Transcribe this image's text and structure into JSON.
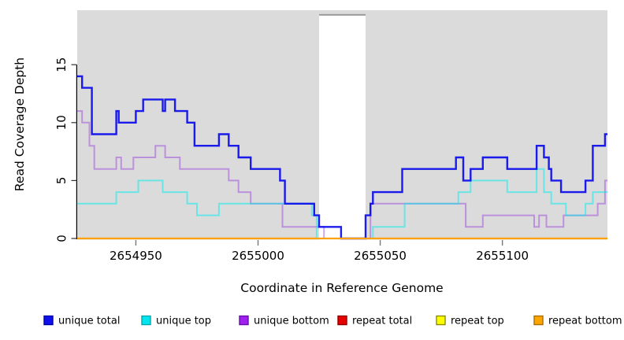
{
  "figure": {
    "panel_color": "#dbdbdb",
    "background": "#ffffff",
    "gap_band": {
      "start": 2655025,
      "end": 2655044,
      "top_value": 19.3,
      "fill": "#ffffff",
      "top_border": "#9a9a9a"
    }
  },
  "chart_data": {
    "type": "line",
    "style": "step",
    "title": "",
    "xlabel": "Coordinate in Reference Genome",
    "ylabel": "Read Coverage Depth",
    "xlim": [
      2654926,
      2655143
    ],
    "ylim": [
      0,
      19.7
    ],
    "x_ticks": [
      "2654950",
      "2655000",
      "2655050",
      "2655100"
    ],
    "x_tick_values": [
      2654950,
      2655000,
      2655050,
      2655100
    ],
    "y_ticks": [
      "0",
      "5",
      "10",
      "15"
    ],
    "y_tick_values": [
      0,
      5,
      10,
      15
    ],
    "grid": "off",
    "legend_position": "bottom",
    "x_end": 2655143,
    "series": [
      {
        "name": "unique total",
        "line_color": "rgba(10,10,235,0.92)",
        "line_width": 2.4,
        "legend_fill": "#1010ee",
        "legend_border": "#0000aa",
        "steps": [
          [
            2654926,
            14
          ],
          [
            2654928,
            13
          ],
          [
            2654932,
            9
          ],
          [
            2654942,
            11
          ],
          [
            2654943,
            10
          ],
          [
            2654950,
            11
          ],
          [
            2654953,
            12
          ],
          [
            2654961,
            11
          ],
          [
            2654962,
            12
          ],
          [
            2654966,
            11
          ],
          [
            2654971,
            10
          ],
          [
            2654974,
            8
          ],
          [
            2654984,
            9
          ],
          [
            2654988,
            8
          ],
          [
            2654992,
            7
          ],
          [
            2654997,
            6
          ],
          [
            2655009,
            5
          ],
          [
            2655011,
            3
          ],
          [
            2655023,
            2
          ],
          [
            2655025,
            1
          ],
          [
            2655034,
            0
          ],
          [
            2655044,
            2
          ],
          [
            2655046,
            3
          ],
          [
            2655047,
            4
          ],
          [
            2655059,
            6
          ],
          [
            2655081,
            7
          ],
          [
            2655084,
            5
          ],
          [
            2655087,
            6
          ],
          [
            2655092,
            7
          ],
          [
            2655102,
            6
          ],
          [
            2655114,
            8
          ],
          [
            2655117,
            7
          ],
          [
            2655119,
            6
          ],
          [
            2655120,
            5
          ],
          [
            2655124,
            4
          ],
          [
            2655134,
            5
          ],
          [
            2655137,
            8
          ],
          [
            2655142,
            9
          ]
        ]
      },
      {
        "name": "unique top",
        "line_color": "rgba(0,238,238,0.52)",
        "line_width": 2.0,
        "legend_fill": "#00e5ee",
        "legend_border": "#00a8b0",
        "steps": [
          [
            2654926,
            3
          ],
          [
            2654942,
            4
          ],
          [
            2654951,
            5
          ],
          [
            2654961,
            4
          ],
          [
            2654971,
            3
          ],
          [
            2654975,
            2
          ],
          [
            2654984,
            3
          ],
          [
            2655022,
            2
          ],
          [
            2655024,
            0
          ],
          [
            2655047,
            1
          ],
          [
            2655060,
            3
          ],
          [
            2655082,
            4
          ],
          [
            2655087,
            5
          ],
          [
            2655102,
            4
          ],
          [
            2655114,
            6
          ],
          [
            2655117,
            4
          ],
          [
            2655120,
            3
          ],
          [
            2655126,
            2
          ],
          [
            2655134,
            3
          ],
          [
            2655137,
            4
          ]
        ]
      },
      {
        "name": "unique bottom",
        "line_color": "rgba(146,44,222,0.42)",
        "line_width": 2.0,
        "legend_fill": "#a020f0",
        "legend_border": "#6a0dad",
        "steps": [
          [
            2654926,
            11
          ],
          [
            2654928,
            10
          ],
          [
            2654931,
            8
          ],
          [
            2654933,
            6
          ],
          [
            2654942,
            7
          ],
          [
            2654944,
            6
          ],
          [
            2654949,
            7
          ],
          [
            2654958,
            8
          ],
          [
            2654962,
            7
          ],
          [
            2654968,
            6
          ],
          [
            2654988,
            5
          ],
          [
            2654992,
            4
          ],
          [
            2654997,
            3
          ],
          [
            2655010,
            1
          ],
          [
            2655027,
            0
          ],
          [
            2655046,
            3
          ],
          [
            2655085,
            1
          ],
          [
            2655092,
            2
          ],
          [
            2655113,
            1
          ],
          [
            2655115,
            2
          ],
          [
            2655118,
            1
          ],
          [
            2655125,
            2
          ],
          [
            2655139,
            3
          ],
          [
            2655142,
            5
          ]
        ]
      },
      {
        "name": "repeat total",
        "line_color": "#dd0000",
        "line_width": 2.0,
        "legend_fill": "#e60000",
        "legend_border": "#8b0000",
        "steps": [
          [
            2654926,
            0
          ]
        ]
      },
      {
        "name": "repeat top",
        "line_color": "#ffff00",
        "line_width": 2.0,
        "legend_fill": "#ffff00",
        "legend_border": "#8b8b00",
        "steps": [
          [
            2654926,
            0
          ]
        ]
      },
      {
        "name": "repeat bottom",
        "line_color": "#ffa200",
        "line_width": 2.2,
        "legend_fill": "#ffa500",
        "legend_border": "#aa6e00",
        "steps": [
          [
            2654926,
            0
          ]
        ]
      }
    ]
  }
}
